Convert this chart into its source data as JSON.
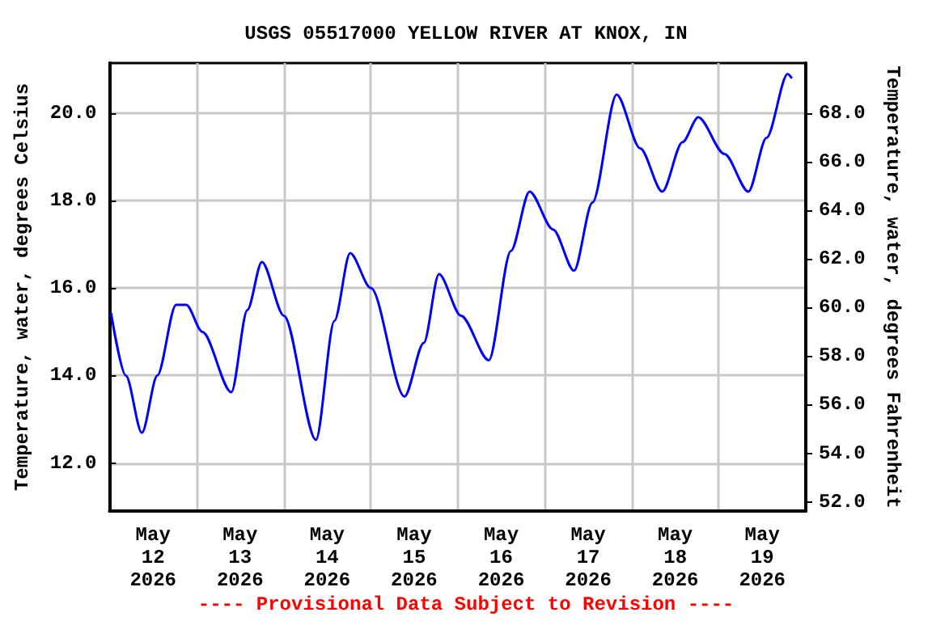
{
  "chart_data": {
    "type": "line",
    "title": "USGS 05517000 YELLOW RIVER AT KNOX, IN",
    "ylabel": "Temperature, water, degrees Celsius",
    "y2label": "Temperature, water, degrees Fahrenheit",
    "annotations": [
      "---- Provisional Data Subject to Revision ----"
    ],
    "x": [
      "2026-05-12T00:25",
      "2026-05-12T04:30",
      "2026-05-12T08:55",
      "2026-05-12T13:10",
      "2026-05-12T18:20",
      "2026-05-12T21:10",
      "2026-05-13T01:35",
      "2026-05-13T09:35",
      "2026-05-13T14:00",
      "2026-05-13T18:00",
      "2026-05-14T00:05",
      "2026-05-14T08:55",
      "2026-05-14T14:00",
      "2026-05-14T18:20",
      "2026-05-15T00:05",
      "2026-05-15T09:20",
      "2026-05-15T14:40",
      "2026-05-15T18:50",
      "2026-05-16T00:55",
      "2026-05-16T08:35",
      "2026-05-16T14:40",
      "2026-05-16T19:50",
      "2026-05-17T02:20",
      "2026-05-17T08:05",
      "2026-05-17T13:10",
      "2026-05-17T19:50",
      "2026-05-18T02:20",
      "2026-05-18T08:25",
      "2026-05-18T14:00",
      "2026-05-18T18:20",
      "2026-05-19T01:35",
      "2026-05-19T08:10",
      "2026-05-19T13:10",
      "2026-05-19T19:00",
      "2026-05-19T20:10"
    ],
    "series": [
      {
        "color": "#0000ff",
        "values": [
          15.43,
          14.0,
          12.69,
          14.0,
          15.62,
          15.62,
          15.0,
          13.62,
          15.5,
          16.6,
          15.37,
          12.53,
          15.25,
          16.8,
          16.0,
          13.52,
          14.75,
          16.32,
          15.37,
          14.35,
          16.85,
          18.21,
          17.34,
          16.4,
          17.96,
          20.43,
          19.2,
          18.21,
          19.34,
          19.91,
          19.07,
          18.21,
          19.44,
          20.9,
          20.8
        ]
      }
    ],
    "xlim": [
      "2026-05-12T00:00",
      "2026-05-20T00:00"
    ],
    "xticks": [
      {
        "value": "2026-05-12T12:00",
        "label": "May\n12\n2026"
      },
      {
        "value": "2026-05-13T00:00",
        "label": null
      },
      {
        "value": "2026-05-13T12:00",
        "label": "May\n13\n2026"
      },
      {
        "value": "2026-05-14T00:00",
        "label": null
      },
      {
        "value": "2026-05-14T12:00",
        "label": "May\n14\n2026"
      },
      {
        "value": "2026-05-15T00:00",
        "label": null
      },
      {
        "value": "2026-05-15T12:00",
        "label": "May\n15\n2026"
      },
      {
        "value": "2026-05-16T00:00",
        "label": null
      },
      {
        "value": "2026-05-16T12:00",
        "label": "May\n16\n2026"
      },
      {
        "value": "2026-05-17T00:00",
        "label": null
      },
      {
        "value": "2026-05-17T12:00",
        "label": "May\n17\n2026"
      },
      {
        "value": "2026-05-18T00:00",
        "label": null
      },
      {
        "value": "2026-05-18T12:00",
        "label": "May\n18\n2026"
      },
      {
        "value": "2026-05-19T00:00",
        "label": null
      },
      {
        "value": "2026-05-19T12:00",
        "label": "May\n19\n2026"
      }
    ],
    "ylim": [
      10.9,
      21.15
    ],
    "yticks": [
      {
        "value": 12,
        "label": "12.0"
      },
      {
        "value": 14,
        "label": "14.0"
      },
      {
        "value": 16,
        "label": "16.0"
      },
      {
        "value": 18,
        "label": "18.0"
      },
      {
        "value": 20,
        "label": "20.0"
      }
    ],
    "y2lim": [
      51.62,
      70.07
    ],
    "y2ticks": [
      {
        "value": 52,
        "label": "52.0"
      },
      {
        "value": 54,
        "label": "54.0"
      },
      {
        "value": 56,
        "label": "56.0"
      },
      {
        "value": 58,
        "label": "58.0"
      },
      {
        "value": 60,
        "label": "60.0"
      },
      {
        "value": 62,
        "label": "62.0"
      },
      {
        "value": 64,
        "label": "64.0"
      },
      {
        "value": 66,
        "label": "66.0"
      },
      {
        "value": 68,
        "label": "68.0"
      }
    ],
    "grid": true
  }
}
